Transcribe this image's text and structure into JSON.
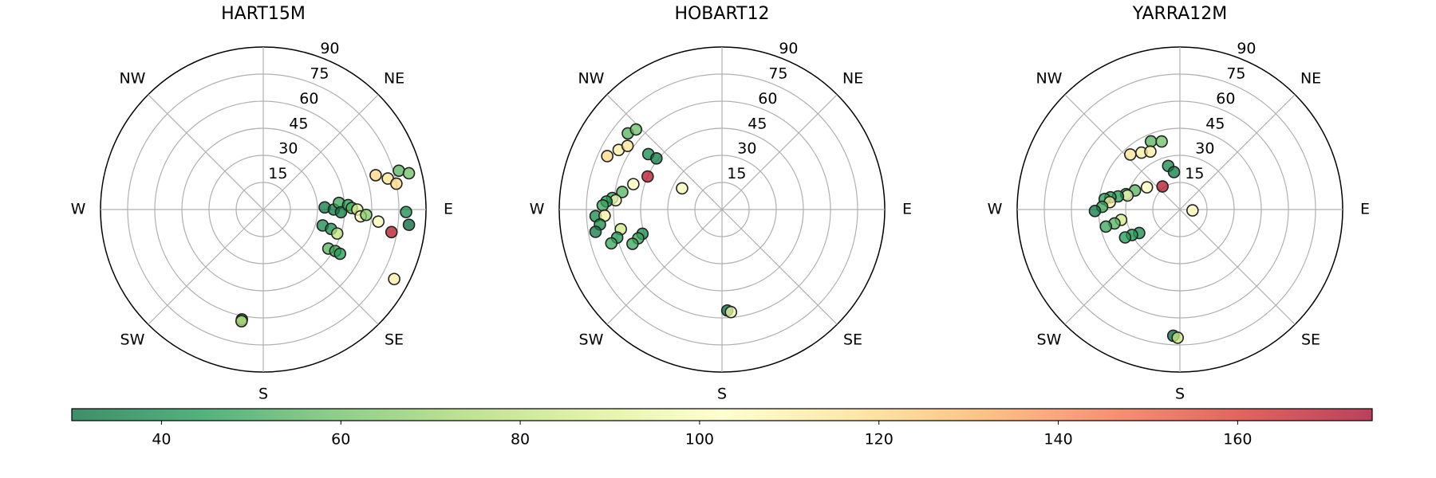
{
  "chart_data": [
    {
      "type": "polar-scatter",
      "title": "HART15M",
      "rlim": [
        0,
        90
      ],
      "rticks": [
        15,
        30,
        45,
        60,
        75,
        90
      ],
      "thetaticks": [
        {
          "value": 45,
          "label": "NE"
        },
        {
          "value": 90,
          "label": "E"
        },
        {
          "value": 135,
          "label": "SE"
        },
        {
          "value": 180,
          "label": "S"
        },
        {
          "value": 225,
          "label": "SW"
        },
        {
          "value": 270,
          "label": "W"
        },
        {
          "value": 315,
          "label": "NW"
        }
      ],
      "azimuth": [
        88,
        90,
        85,
        92,
        87,
        89,
        90,
        94,
        93,
        96,
        105,
        106,
        108,
        121,
        120,
        120,
        73,
        76,
        79,
        74,
        76,
        91,
        96,
        100,
        118,
        191,
        191
      ],
      "zenith": [
        34,
        39,
        42,
        43,
        47,
        49,
        52,
        54,
        57,
        64,
        34,
        39,
        43,
        42,
        46,
        49,
        65,
        71,
        75,
        78,
        83,
        79,
        81,
        72,
        82,
        62,
        63
      ],
      "values": [
        35,
        35,
        50,
        35,
        45,
        55,
        90,
        100,
        65,
        100,
        40,
        40,
        80,
        55,
        50,
        45,
        120,
        115,
        120,
        55,
        60,
        40,
        30,
        170,
        110,
        35,
        80
      ]
    },
    {
      "type": "polar-scatter",
      "title": "HOBART12",
      "rlim": [
        0,
        90
      ],
      "rticks": [
        15,
        30,
        45,
        60,
        75,
        90
      ],
      "thetaticks": [
        {
          "value": 45,
          "label": "NE"
        },
        {
          "value": 90,
          "label": "E"
        },
        {
          "value": 135,
          "label": "SE"
        },
        {
          "value": 180,
          "label": "S"
        },
        {
          "value": 225,
          "label": "SW"
        },
        {
          "value": 270,
          "label": "W"
        },
        {
          "value": 315,
          "label": "NW"
        }
      ],
      "azimuth": [
        298,
        294,
        307,
        308,
        309,
        313,
        295,
        300,
        304,
        286,
        280,
        276,
        275,
        274,
        272,
        267,
        267,
        263,
        260,
        259,
        255,
        253,
        253,
        251,
        249,
        177,
        175
      ],
      "zenith": [
        25,
        45,
        51,
        46,
        67,
        65,
        70,
        66,
        63,
        51,
        56,
        61,
        59,
        64,
        66,
        70,
        65,
        68,
        71,
        57,
        60,
        64,
        46,
        49,
        53,
        56,
        57
      ],
      "values": [
        100,
        170,
        40,
        35,
        55,
        60,
        120,
        110,
        115,
        100,
        55,
        50,
        100,
        45,
        50,
        40,
        110,
        40,
        35,
        85,
        45,
        50,
        40,
        50,
        50,
        30,
        95
      ]
    },
    {
      "type": "polar-scatter",
      "title": "YARRA12M",
      "rlim": [
        0,
        90
      ],
      "rticks": [
        15,
        30,
        45,
        60,
        75,
        90
      ],
      "thetaticks": [
        {
          "value": 45,
          "label": "NE"
        },
        {
          "value": 90,
          "label": "E"
        },
        {
          "value": 135,
          "label": "SE"
        },
        {
          "value": 180,
          "label": "S"
        },
        {
          "value": 225,
          "label": "SW"
        },
        {
          "value": 270,
          "label": "W"
        },
        {
          "value": 315,
          "label": "NW"
        }
      ],
      "azimuth": [
        94,
        323,
        345,
        351,
        337,
        345,
        318,
        326,
        333,
        304,
        293,
        286,
        285,
        282,
        280,
        278,
        276,
        272,
        269,
        260,
        258,
        257,
        240,
        242,
        243,
        183,
        181
      ],
      "zenith": [
        7,
        16,
        25,
        21,
        41,
        39,
        41,
        38,
        36,
        22,
        27,
        31,
        30,
        35,
        39,
        42,
        39,
        43,
        47,
        33,
        37,
        42,
        26,
        30,
        34,
        70,
        71
      ],
      "values": [
        100,
        170,
        40,
        35,
        55,
        60,
        115,
        110,
        110,
        100,
        55,
        50,
        100,
        45,
        45,
        45,
        110,
        50,
        35,
        85,
        55,
        50,
        40,
        45,
        45,
        30,
        85
      ]
    }
  ],
  "colorbar": {
    "clim": [
      30,
      175
    ],
    "ticks": [
      40,
      60,
      80,
      100,
      120,
      140,
      160
    ],
    "colors": [
      "#006837",
      "#1a9850",
      "#66bd63",
      "#a6d96a",
      "#d9ef8b",
      "#ffffbf",
      "#fee08b",
      "#fdae61",
      "#f46d43",
      "#d73027",
      "#a50026"
    ],
    "opacity": 0.75
  }
}
